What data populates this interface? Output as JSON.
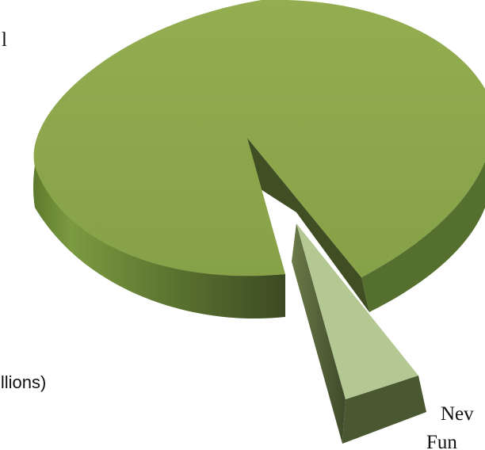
{
  "chart_data": {
    "type": "pie",
    "title": "",
    "slices": [
      {
        "label": "",
        "value": 0.96,
        "color": "#8faa4c",
        "side_color": "#6e8a36"
      },
      {
        "label": "New Fun",
        "value": 0.04,
        "color": "#b2c690",
        "side_color": "#4a5832"
      }
    ],
    "slice_label_lines": [
      "Nev",
      "Fun"
    ],
    "fragments": {
      "top_left": "l",
      "left_bottom": "illions)"
    }
  },
  "colors": {
    "main_top": "#8faa4c",
    "main_side": "#6e8a36",
    "main_side_dark": "#3c4a22",
    "small_top": "#b2c690",
    "small_side": "#55633a",
    "background": "#ffffff"
  }
}
